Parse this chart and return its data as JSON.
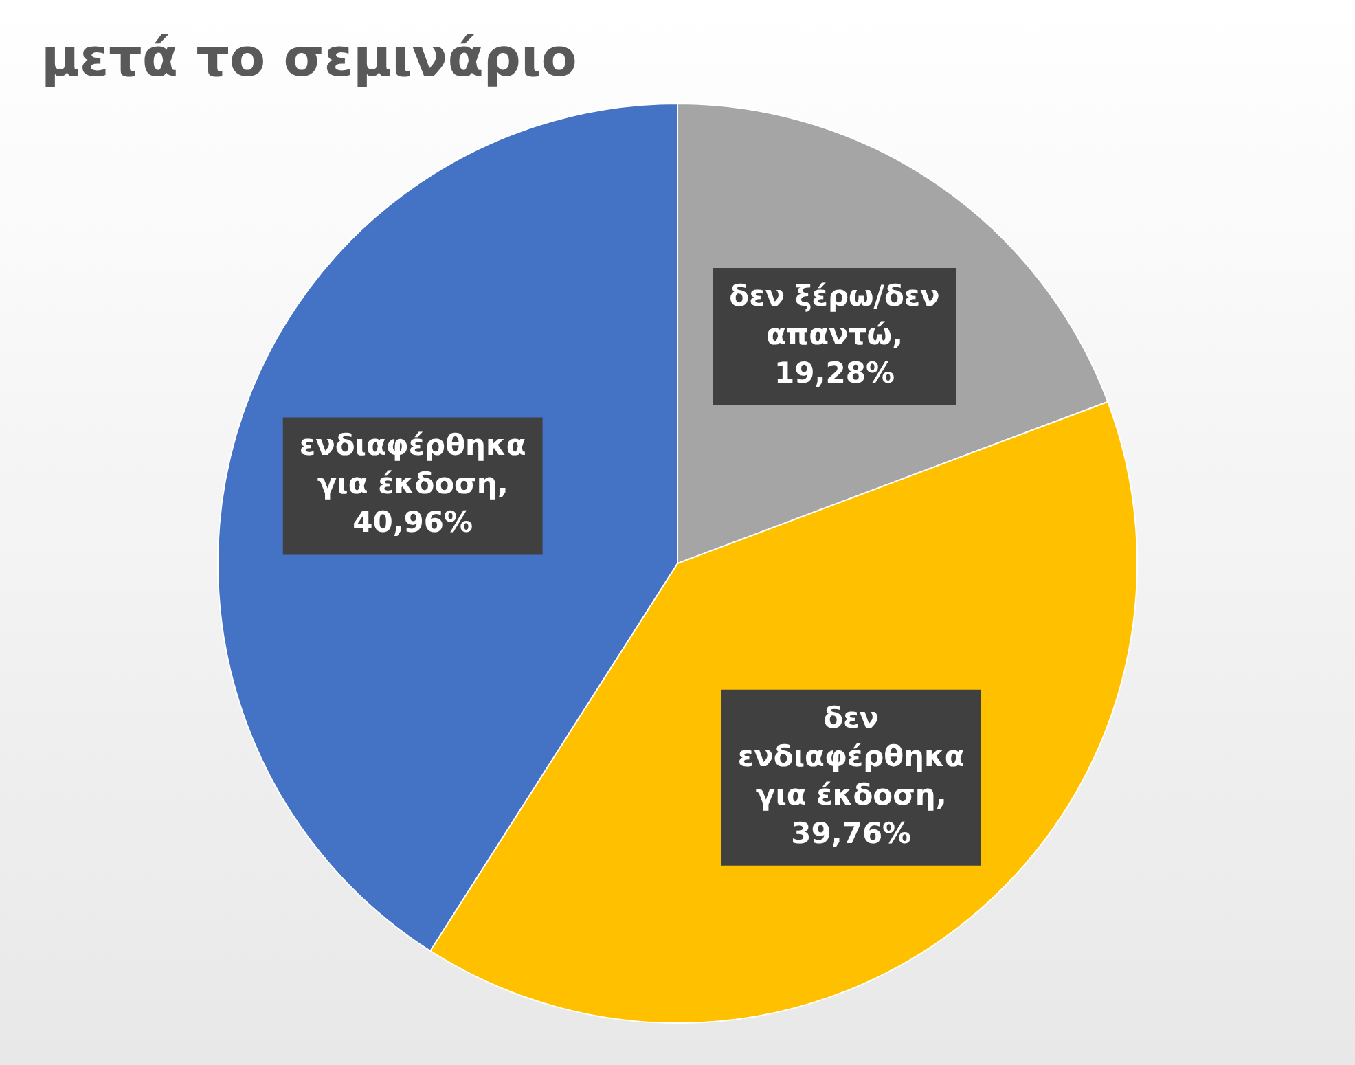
{
  "chart_data": {
    "type": "pie",
    "title": "μετά το σεμινάριο",
    "categories": [
      "δεν ξέρω/δεν απαντώ",
      "δεν ενδιαφέρθηκα για έκδοση",
      "ενδιαφέρθηκα για έκδοση"
    ],
    "values": [
      19.28,
      39.76,
      40.96
    ],
    "colors": [
      "#a5a5a5",
      "#ffc000",
      "#4472c4"
    ],
    "value_labels": [
      ", 19,28%",
      ", 39,76%",
      ", 40,96%"
    ],
    "legend": false
  }
}
